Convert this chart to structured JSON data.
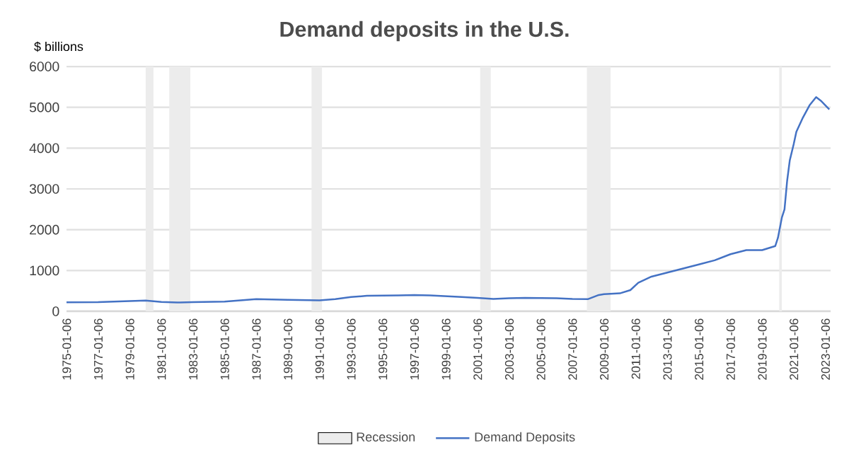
{
  "chart_data": {
    "type": "line",
    "title": "Demand deposits in the U.S.",
    "ylabel": "$ billions",
    "xlim": [
      "1975-01-01",
      "2023-05-01"
    ],
    "xticks": [
      "1975-01-06",
      "1977-01-06",
      "1979-01-06",
      "1981-01-06",
      "1983-01-06",
      "1985-01-06",
      "1987-01-06",
      "1989-01-06",
      "1991-01-06",
      "1993-01-06",
      "1995-01-06",
      "1997-01-06",
      "1999-01-06",
      "2001-01-06",
      "2003-01-06",
      "2005-01-06",
      "2007-01-06",
      "2009-01-06",
      "2011-01-06",
      "2013-01-06",
      "2015-01-06",
      "2017-01-06",
      "2019-01-06",
      "2021-01-06",
      "2023-01-06"
    ],
    "ylim": [
      0,
      6000
    ],
    "yticks": [
      0,
      1000,
      2000,
      3000,
      4000,
      5000,
      6000
    ],
    "grid": "y",
    "legend": "bottom",
    "bands": [
      {
        "axis": "x",
        "from": "1980-01",
        "to": "1980-07",
        "label": "Recession",
        "color": "#ececec"
      },
      {
        "axis": "x",
        "from": "1981-07",
        "to": "1982-11",
        "color": "#ececec"
      },
      {
        "axis": "x",
        "from": "1990-07",
        "to": "1991-03",
        "color": "#ececec"
      },
      {
        "axis": "x",
        "from": "2001-03",
        "to": "2001-11",
        "color": "#ececec"
      },
      {
        "axis": "x",
        "from": "2007-12",
        "to": "2009-06",
        "color": "#ececec"
      },
      {
        "axis": "x",
        "from": "2020-02",
        "to": "2020-04",
        "color": "#ececec"
      }
    ],
    "series": [
      {
        "name": "Demand Deposits",
        "color": "#4472c4",
        "x": [
          "1975-01",
          "1977-01",
          "1979-01",
          "1980-01",
          "1981-01",
          "1982-01",
          "1983-01",
          "1985-01",
          "1986-01",
          "1987-01",
          "1988-01",
          "1989-01",
          "1990-01",
          "1991-01",
          "1992-01",
          "1993-01",
          "1994-01",
          "1995-01",
          "1996-01",
          "1997-01",
          "1998-01",
          "1999-01",
          "2000-01",
          "2001-01",
          "2002-01",
          "2003-01",
          "2004-01",
          "2005-01",
          "2006-01",
          "2007-01",
          "2008-01",
          "2008-09",
          "2009-01",
          "2010-01",
          "2010-09",
          "2011-03",
          "2012-01",
          "2013-01",
          "2014-01",
          "2015-01",
          "2016-01",
          "2017-01",
          "2018-01",
          "2019-01",
          "2019-11",
          "2020-01",
          "2020-04",
          "2020-06",
          "2020-08",
          "2020-10",
          "2021-01",
          "2021-03",
          "2021-08",
          "2022-01",
          "2022-06",
          "2022-10",
          "2023-01",
          "2023-04"
        ],
        "values": [
          220,
          225,
          250,
          265,
          230,
          215,
          225,
          240,
          270,
          300,
          290,
          280,
          275,
          270,
          300,
          350,
          380,
          385,
          390,
          400,
          390,
          370,
          350,
          330,
          305,
          320,
          330,
          325,
          320,
          305,
          300,
          400,
          420,
          440,
          520,
          700,
          850,
          950,
          1050,
          1150,
          1250,
          1400,
          1500,
          1500,
          1600,
          1800,
          2300,
          2500,
          3200,
          3700,
          4100,
          4400,
          4750,
          5050,
          5250,
          5150,
          5050,
          4950
        ]
      }
    ]
  }
}
